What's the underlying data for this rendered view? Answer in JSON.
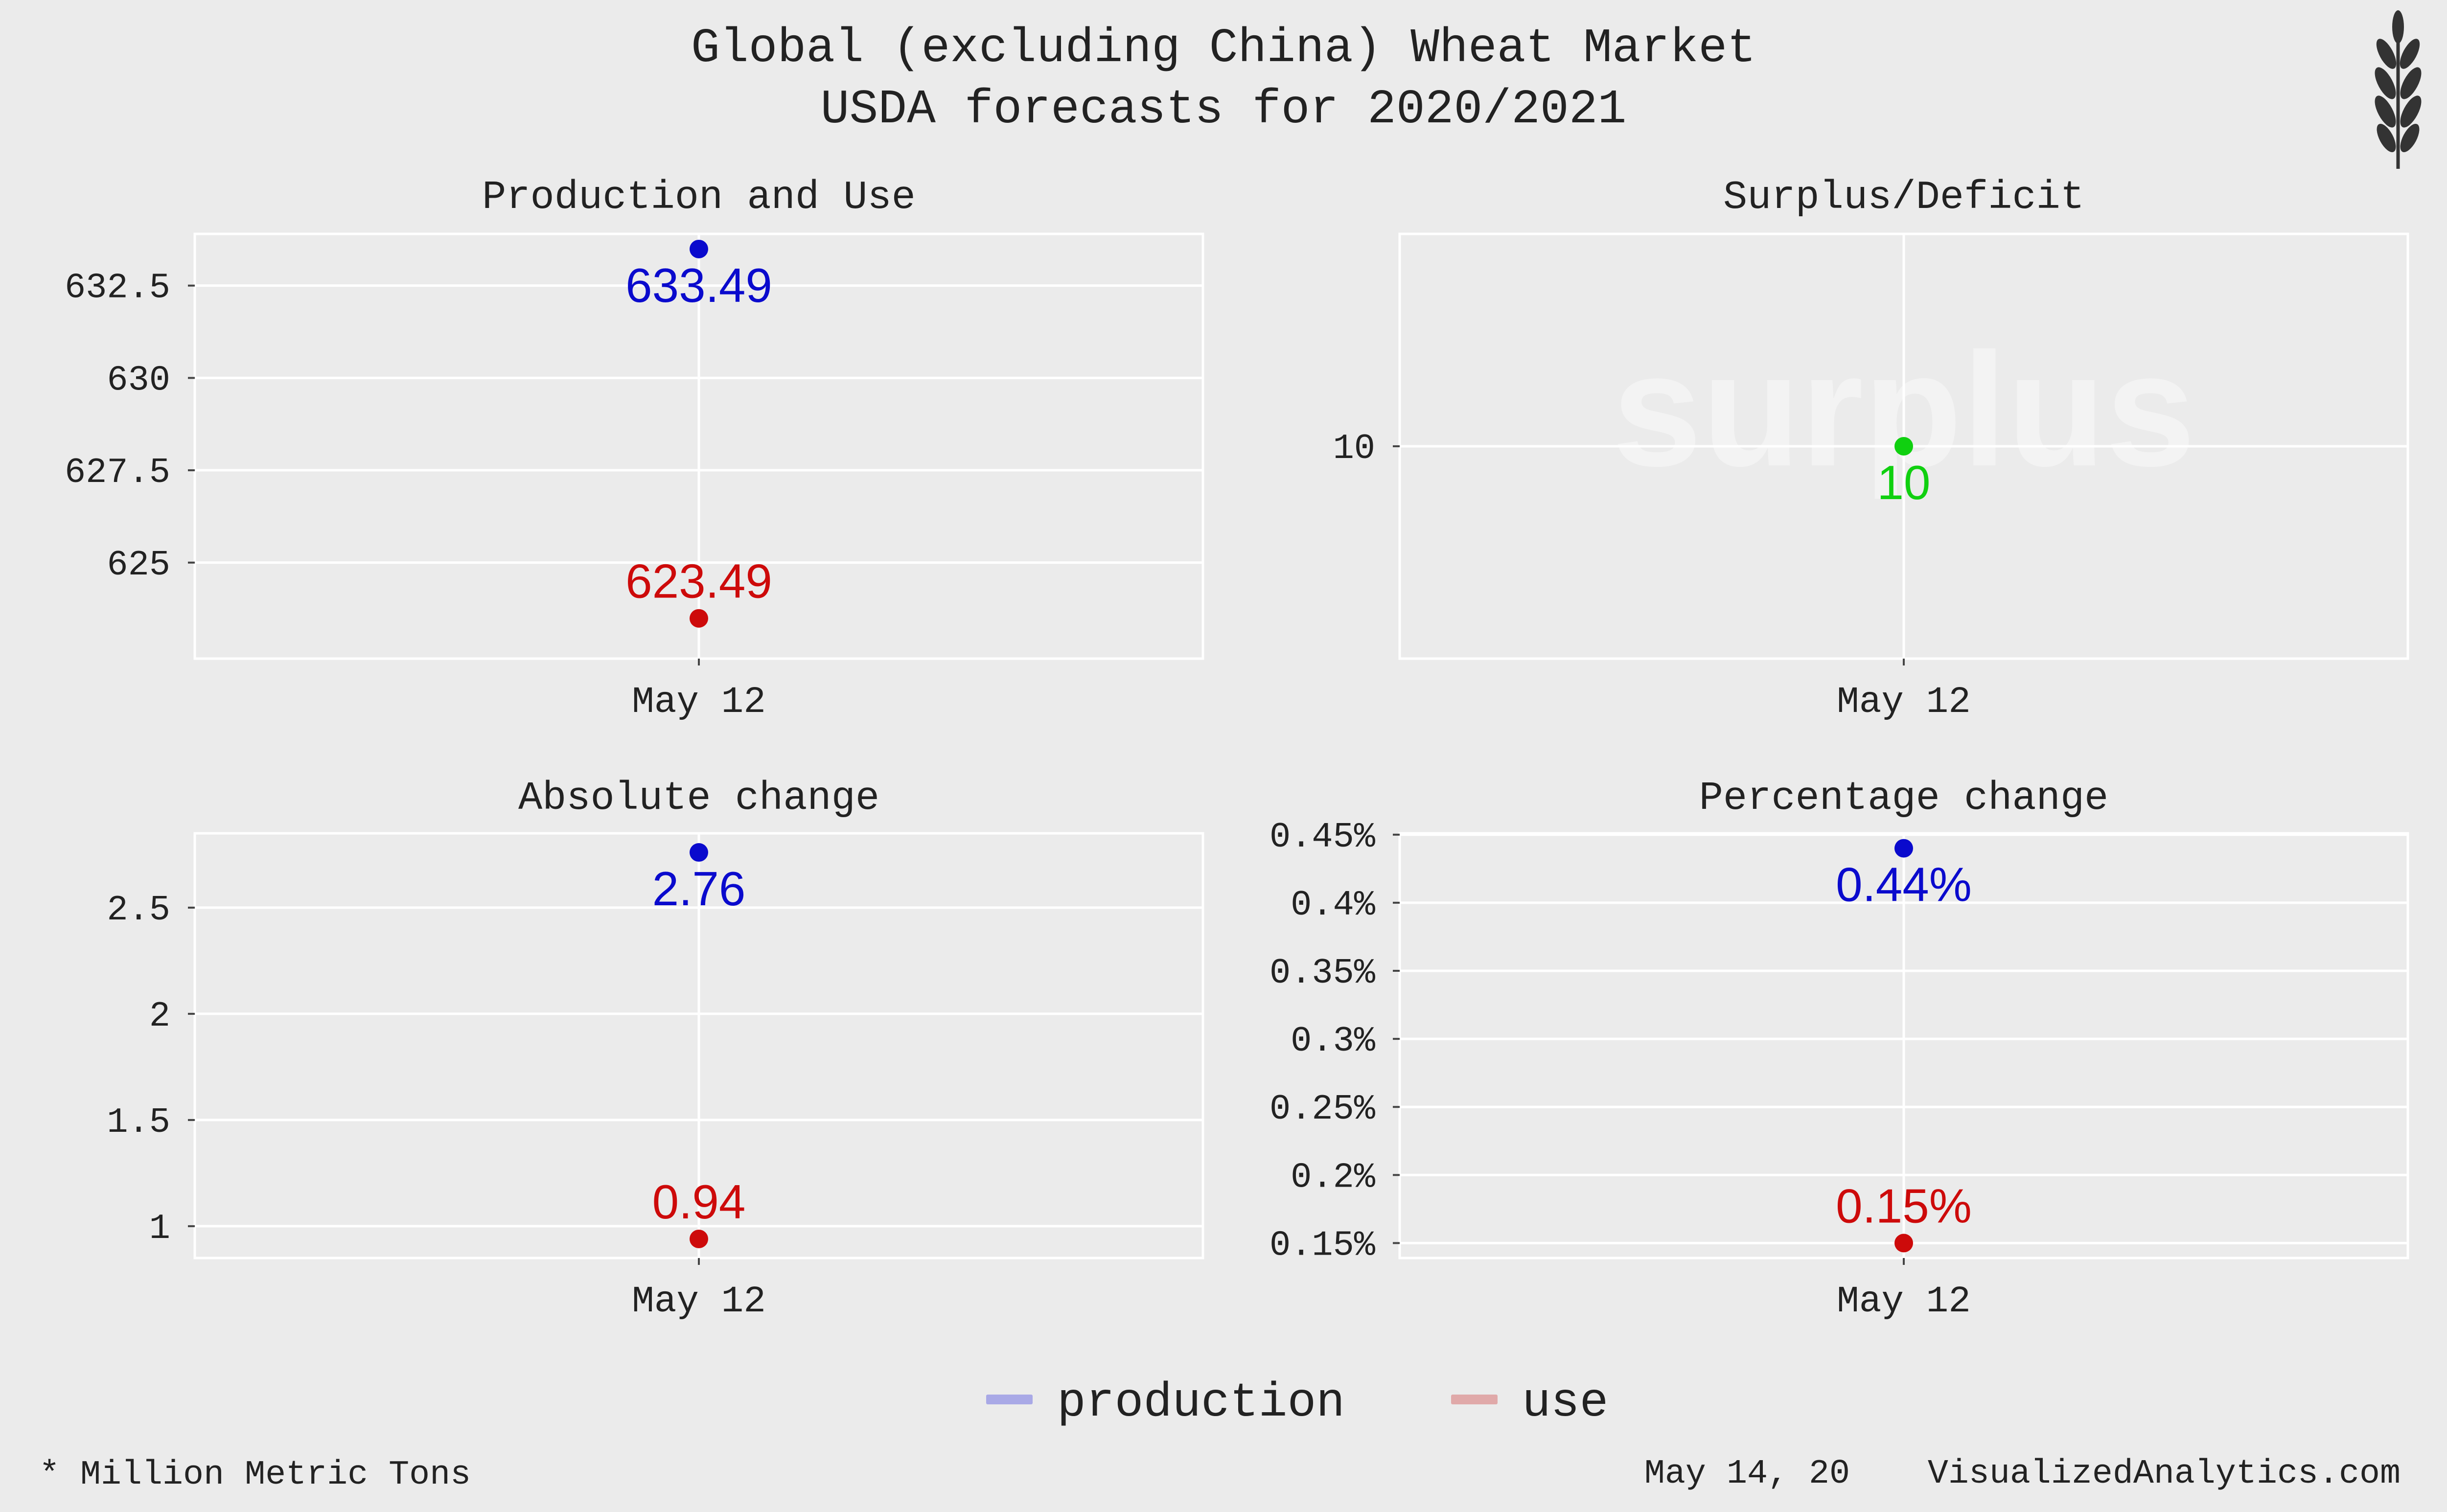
{
  "title_line1": "Global (excluding China) Wheat Market",
  "title_line2": "USDA forecasts for 2020/2021",
  "footnote_left": "* Million Metric Tons",
  "footnote_date": "May 14, 20",
  "footnote_site": "VisualizedAnalytics.com",
  "logo_icon": "wheat-icon",
  "colors": {
    "background": "#ebebeb",
    "grid": "#ffffff",
    "production": "#0a0acd",
    "use": "#cd0a0a",
    "surplus": "#10d010",
    "legend_production": "#a9a9e6",
    "legend_use": "#e0a9a9",
    "text": "#222222",
    "watermark": "#f3f3f3"
  },
  "legend": {
    "items": [
      {
        "label": "production",
        "color": "#a9a9e6"
      },
      {
        "label": "use",
        "color": "#e0a9a9"
      }
    ]
  },
  "chart_data": [
    {
      "type": "scatter",
      "title": "Production and Use",
      "categories": [
        "May 12"
      ],
      "ylim": [
        622.4,
        633.9
      ],
      "yticks": [
        625,
        627.5,
        630,
        632.5
      ],
      "ytick_labels": [
        "625",
        "627.5",
        "630",
        "632.5"
      ],
      "series": [
        {
          "name": "production",
          "values": [
            633.49
          ],
          "labels": [
            "633.49"
          ],
          "color": "#0a0acd",
          "label_pos": "below"
        },
        {
          "name": "use",
          "values": [
            623.49
          ],
          "labels": [
            "623.49"
          ],
          "color": "#cd0a0a",
          "label_pos": "above"
        }
      ],
      "grid": true
    },
    {
      "type": "scatter",
      "title": "Surplus/Deficit",
      "watermark": "surplus",
      "categories": [
        "May 12"
      ],
      "ylim": [
        9,
        11
      ],
      "yticks": [
        10
      ],
      "ytick_labels": [
        "10"
      ],
      "series": [
        {
          "name": "surplus",
          "values": [
            10
          ],
          "labels": [
            "10"
          ],
          "color": "#10d010",
          "label_pos": "below"
        }
      ],
      "grid": true
    },
    {
      "type": "scatter",
      "title": "Absolute change",
      "categories": [
        "May 12"
      ],
      "ylim": [
        0.85,
        2.85
      ],
      "yticks": [
        1,
        1.5,
        2,
        2.5
      ],
      "ytick_labels": [
        "1",
        "1.5",
        "2",
        "2.5"
      ],
      "series": [
        {
          "name": "production",
          "values": [
            2.76
          ],
          "labels": [
            "2.76"
          ],
          "color": "#0a0acd",
          "label_pos": "below"
        },
        {
          "name": "use",
          "values": [
            0.94
          ],
          "labels": [
            "0.94"
          ],
          "color": "#cd0a0a",
          "label_pos": "above"
        }
      ],
      "grid": true
    },
    {
      "type": "scatter",
      "title": "Percentage change",
      "categories": [
        "May 12"
      ],
      "ylim": [
        0.139,
        0.451
      ],
      "yticks": [
        0.15,
        0.2,
        0.25,
        0.3,
        0.35,
        0.4,
        0.45
      ],
      "ytick_labels": [
        "0.15%",
        "0.2%",
        "0.25%",
        "0.3%",
        "0.35%",
        "0.4%",
        "0.45%"
      ],
      "series": [
        {
          "name": "production",
          "values": [
            0.44
          ],
          "labels": [
            "0.44%"
          ],
          "color": "#0a0acd",
          "label_pos": "below"
        },
        {
          "name": "use",
          "values": [
            0.15
          ],
          "labels": [
            "0.15%"
          ],
          "color": "#cd0a0a",
          "label_pos": "above"
        }
      ],
      "grid": true
    }
  ]
}
